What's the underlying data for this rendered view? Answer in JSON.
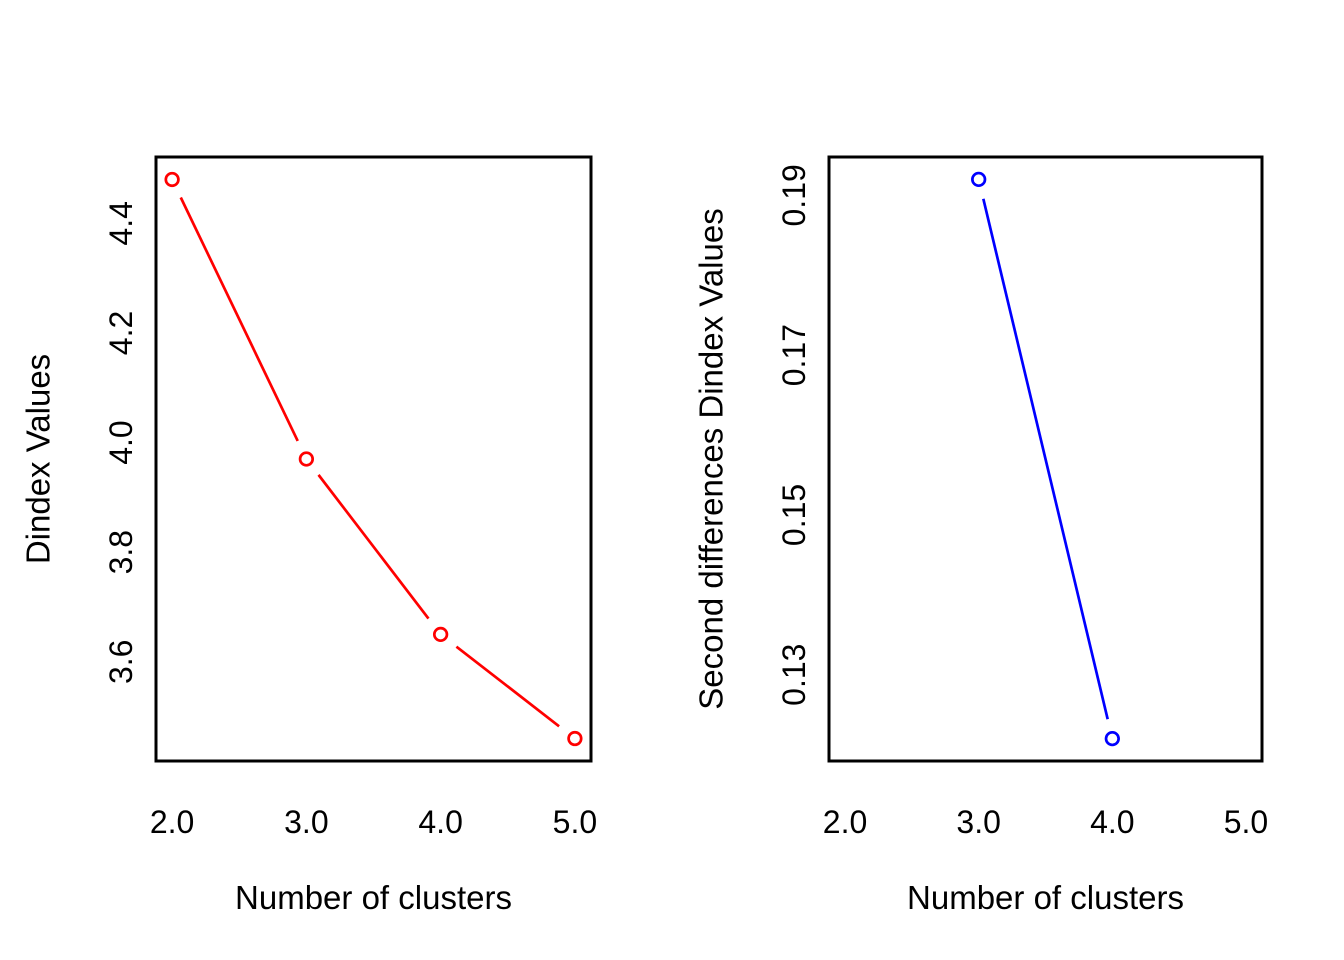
{
  "figure": {
    "background_color": "#FFFFFF",
    "foreground_color": "#000000",
    "accent_colors": {
      "left_series": "#FF0000",
      "right_series": "#0000FF"
    }
  },
  "chart_data": [
    {
      "type": "line",
      "title": "",
      "xlabel": "Number of clusters",
      "ylabel": "Dindex Values",
      "series": [
        {
          "name": "Dindex",
          "x": [
            2,
            3,
            4,
            5
          ],
          "y": [
            4.48,
            3.97,
            3.65,
            3.46
          ],
          "color": "#FF0000",
          "marker": "open-circle",
          "line_style": "solid"
        }
      ],
      "xticks": {
        "values": [
          2,
          3,
          4,
          5
        ],
        "labels": [
          "2.0",
          "3.0",
          "4.0",
          "5.0"
        ]
      },
      "yticks": {
        "values": [
          3.6,
          3.8,
          4.0,
          4.2,
          4.4
        ],
        "labels": [
          "3.6",
          "3.8",
          "4.0",
          "4.2",
          "4.4"
        ]
      },
      "xlim": [
        1.88,
        5.12
      ],
      "ylim": [
        3.419,
        4.521
      ],
      "grid": false,
      "legend": null,
      "frame": true,
      "axis_color": "#000000"
    },
    {
      "type": "line",
      "title": "",
      "xlabel": "Number of clusters",
      "ylabel": "Second differences Dindex Values",
      "series": [
        {
          "name": "Second differences Dindex",
          "x": [
            3,
            4
          ],
          "y": [
            0.192,
            0.122
          ],
          "color": "#0000FF",
          "marker": "open-circle",
          "line_style": "solid"
        }
      ],
      "xticks": {
        "values": [
          2,
          3,
          4,
          5
        ],
        "labels": [
          "2.0",
          "3.0",
          "4.0",
          "5.0"
        ]
      },
      "yticks": {
        "values": [
          0.13,
          0.15,
          0.17,
          0.19
        ],
        "labels": [
          "0.13",
          "0.15",
          "0.17",
          "0.19"
        ]
      },
      "xlim": [
        1.88,
        5.12
      ],
      "ylim": [
        0.1192,
        0.1948
      ],
      "grid": false,
      "legend": null,
      "frame": true,
      "axis_color": "#000000"
    }
  ]
}
